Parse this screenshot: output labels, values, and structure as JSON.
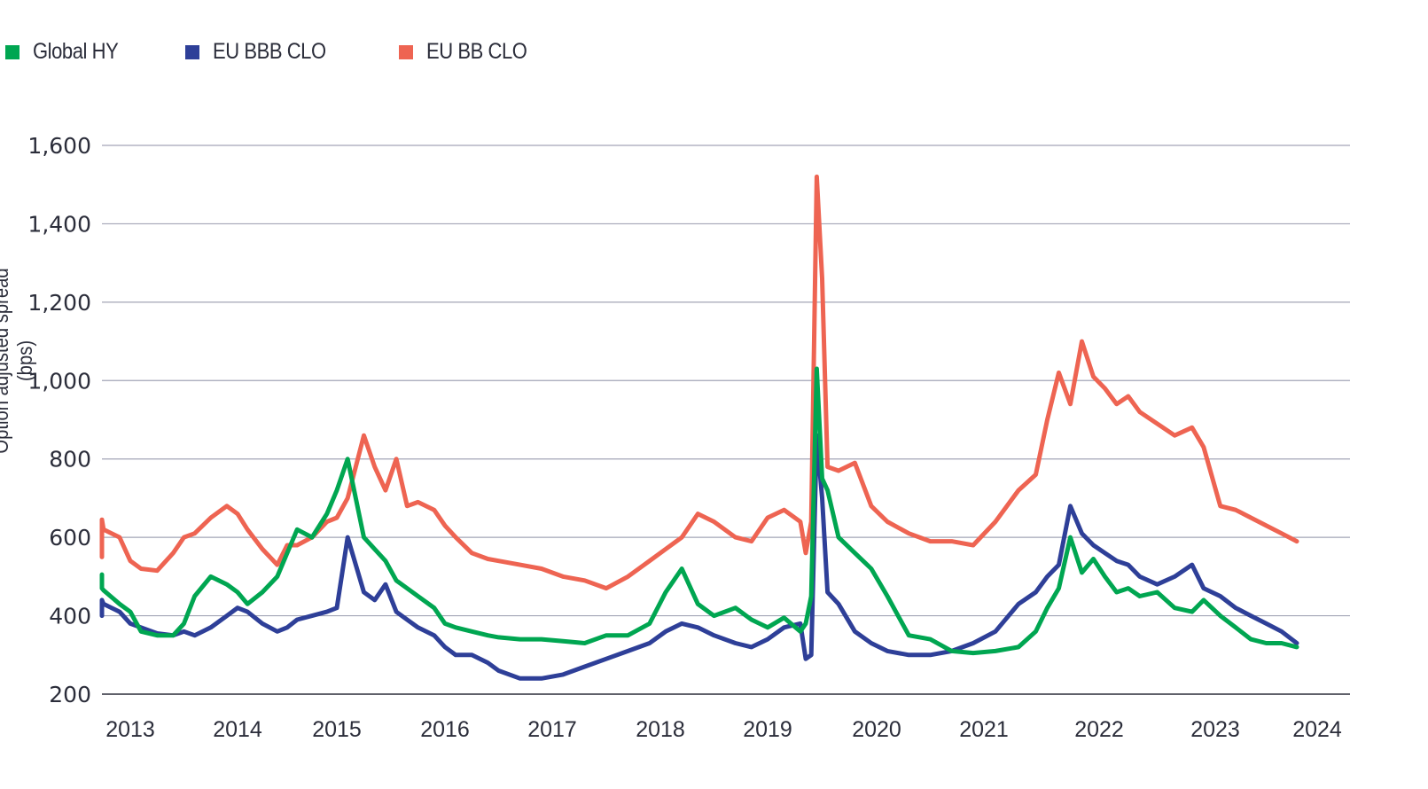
{
  "legend": [
    {
      "label": "Global HY",
      "color": "#00a651"
    },
    {
      "label": "EU BBB CLO",
      "color": "#2e3f98"
    },
    {
      "label": "EU BB CLO",
      "color": "#ee6452"
    }
  ],
  "chart_data": {
    "type": "line",
    "title": "",
    "xlabel": "",
    "ylabel": "Option adjusted spread (bps)",
    "ylim": [
      200,
      1600
    ],
    "yticks": [
      200,
      400,
      600,
      800,
      1000,
      1200,
      1400,
      1600
    ],
    "ytick_labels": [
      "200",
      "400",
      "600",
      "800",
      "1,000",
      "1,200",
      "1,400",
      "1,600"
    ],
    "xticks": [
      "2013",
      "2014",
      "2015",
      "2016",
      "2017",
      "2018",
      "2019",
      "2020",
      "2021",
      "2022",
      "2023",
      "2024"
    ],
    "grid": "horizontal",
    "legend_position": "top-left",
    "x": [
      2012.75,
      2012.9,
      2013.0,
      2013.1,
      2013.25,
      2013.4,
      2013.5,
      2013.6,
      2013.75,
      2013.9,
      2014.0,
      2014.1,
      2014.25,
      2014.4,
      2014.5,
      2014.6,
      2014.75,
      2014.9,
      2015.0,
      2015.1,
      2015.25,
      2015.4,
      2015.5,
      2015.6,
      2015.75,
      2015.85,
      2015.95,
      2016.05,
      2016.15,
      2016.25,
      2016.4,
      2016.5,
      2016.6,
      2016.75,
      2016.9,
      2017.0,
      2017.2,
      2017.4,
      2017.6,
      2017.8,
      2018.0,
      2018.2,
      2018.4,
      2018.55,
      2018.7,
      2018.85,
      2019.0,
      2019.2,
      2019.35,
      2019.5,
      2019.65,
      2019.8,
      2019.85,
      2019.9,
      2019.95,
      2020.0,
      2020.05,
      2020.15,
      2020.3,
      2020.45,
      2020.6,
      2020.8,
      2021.0,
      2021.2,
      2021.4,
      2021.6,
      2021.8,
      2021.95,
      2022.05,
      2022.15,
      2022.25,
      2022.35,
      2022.45,
      2022.55,
      2022.65,
      2022.75,
      2022.85,
      2023.0,
      2023.15,
      2023.3,
      2023.4,
      2023.55,
      2023.7,
      2023.85,
      2024.0,
      2024.15,
      2024.3
    ],
    "series": [
      {
        "name": "Global HY",
        "values": [
          490,
          470,
          505,
          470,
          465,
          430,
          410,
          360,
          350,
          350,
          380,
          450,
          500,
          480,
          460,
          430,
          460,
          500,
          560,
          620,
          600,
          660,
          720,
          800,
          600,
          570,
          540,
          490,
          470,
          450,
          420,
          380,
          370,
          360,
          350,
          345,
          340,
          340,
          335,
          330,
          350,
          350,
          380,
          460,
          520,
          430,
          400,
          420,
          390,
          370,
          395,
          360,
          380,
          450,
          1030,
          750,
          720,
          600,
          560,
          520,
          450,
          350,
          340,
          310,
          305,
          310,
          320,
          360,
          420,
          470,
          600,
          510,
          545,
          500,
          460,
          470,
          450,
          460,
          420,
          410,
          440,
          400,
          370,
          340,
          330,
          330,
          320
        ]
      },
      {
        "name": "EU BBB CLO",
        "values": [
          425,
          400,
          420,
          440,
          430,
          410,
          380,
          370,
          355,
          350,
          360,
          350,
          370,
          400,
          420,
          410,
          380,
          360,
          370,
          390,
          400,
          410,
          420,
          600,
          460,
          440,
          480,
          410,
          390,
          370,
          350,
          320,
          300,
          300,
          280,
          260,
          240,
          240,
          250,
          270,
          290,
          310,
          330,
          360,
          380,
          370,
          350,
          330,
          320,
          340,
          370,
          380,
          290,
          300,
          860,
          700,
          460,
          430,
          360,
          330,
          310,
          300,
          300,
          310,
          330,
          360,
          430,
          460,
          500,
          530,
          680,
          610,
          580,
          560,
          540,
          530,
          500,
          480,
          500,
          530,
          470,
          450,
          420,
          400,
          380,
          360,
          330
        ]
      },
      {
        "name": "EU BB CLO",
        "values": [
          550,
          550,
          570,
          645,
          620,
          600,
          540,
          520,
          515,
          560,
          600,
          610,
          650,
          680,
          660,
          620,
          570,
          530,
          580,
          580,
          600,
          640,
          650,
          700,
          860,
          780,
          720,
          800,
          680,
          690,
          670,
          630,
          600,
          560,
          545,
          540,
          530,
          520,
          500,
          490,
          470,
          500,
          540,
          570,
          600,
          660,
          640,
          600,
          590,
          650,
          670,
          640,
          560,
          640,
          1520,
          1260,
          780,
          770,
          790,
          680,
          640,
          610,
          590,
          590,
          580,
          640,
          720,
          760,
          900,
          1020,
          940,
          1100,
          1010,
          980,
          940,
          960,
          920,
          890,
          860,
          880,
          830,
          680,
          670,
          650,
          630,
          610,
          590
        ]
      }
    ]
  }
}
